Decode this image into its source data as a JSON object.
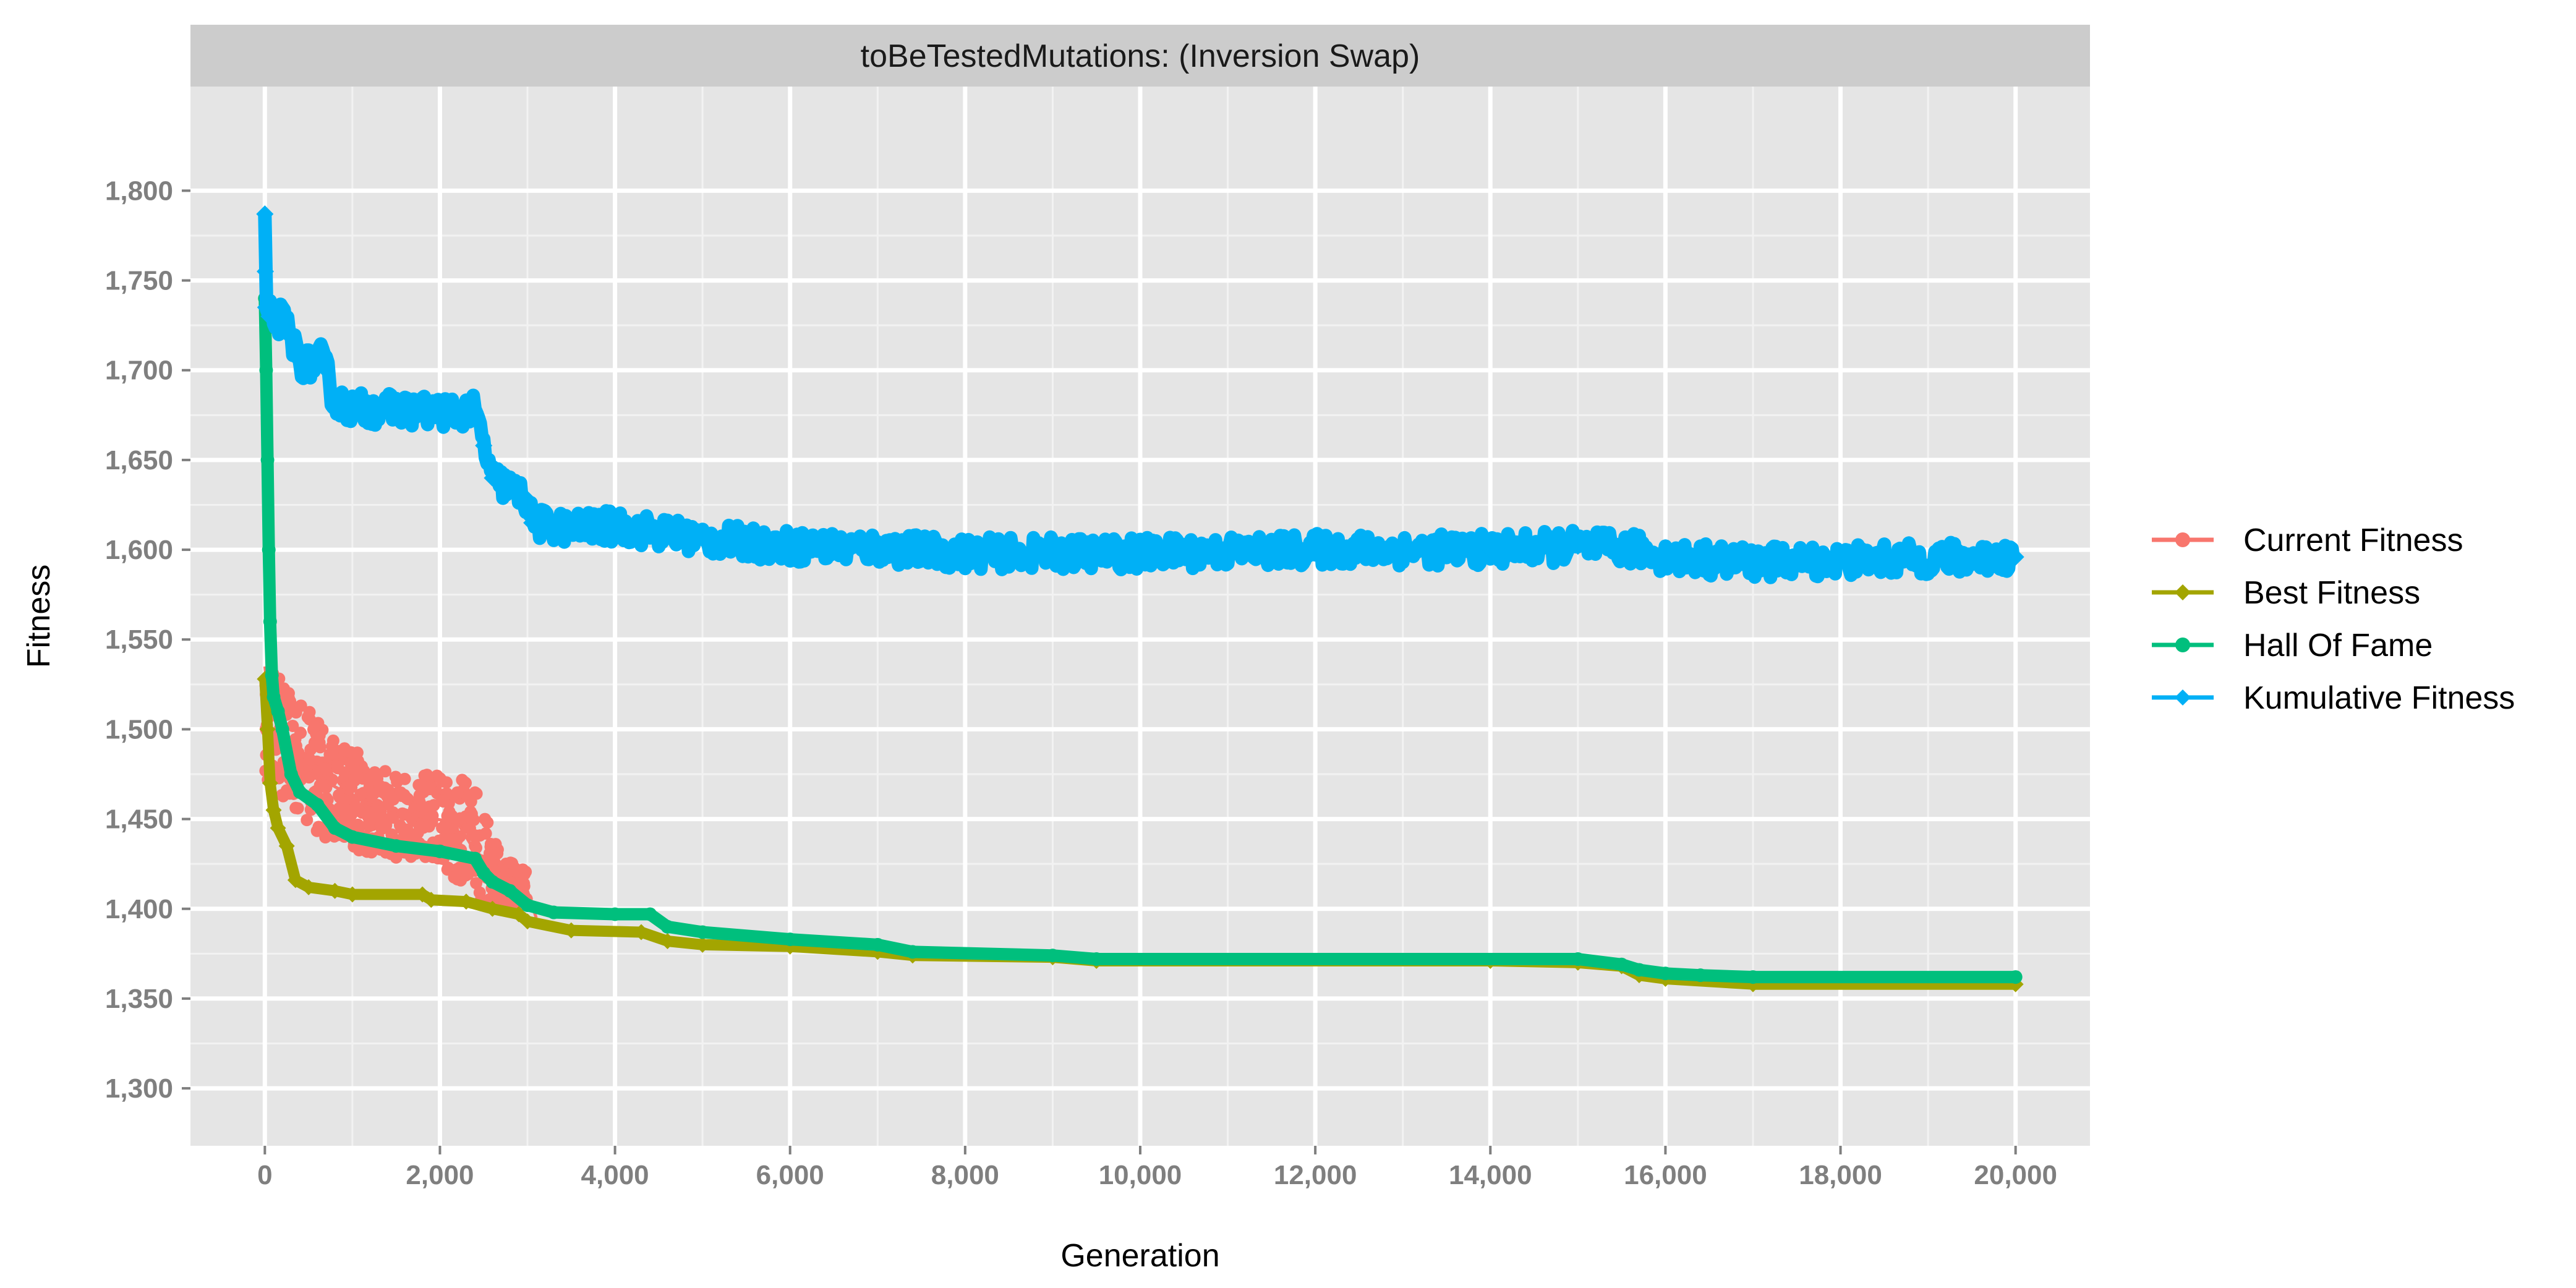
{
  "chart_data": {
    "type": "line",
    "facet_title": "toBeTestedMutations: (Inversion Swap)",
    "xlabel": "Generation",
    "ylabel": "Fitness",
    "xlim": [
      -850,
      20850
    ],
    "ylim": [
      1268,
      1858
    ],
    "x_ticks": [
      0,
      2000,
      4000,
      6000,
      8000,
      10000,
      12000,
      14000,
      16000,
      18000,
      20000
    ],
    "x_tick_labels": [
      "0",
      "2,000",
      "4,000",
      "6,000",
      "8,000",
      "10,000",
      "12,000",
      "14,000",
      "16,000",
      "18,000",
      "20,000"
    ],
    "y_ticks": [
      1300,
      1350,
      1400,
      1450,
      1500,
      1550,
      1600,
      1650,
      1700,
      1750,
      1800
    ],
    "y_tick_labels": [
      "1,300",
      "1,350",
      "1,400",
      "1,450",
      "1,500",
      "1,550",
      "1,600",
      "1,650",
      "1,700",
      "1,750",
      "1,800"
    ],
    "grid": true,
    "legend_position": "right",
    "series": [
      {
        "name": "Current Fitness",
        "color": "#F8766D",
        "marker": "circle",
        "points": [
          [
            0,
            1535
          ],
          [
            50,
            1515
          ],
          [
            150,
            1500
          ],
          [
            300,
            1492
          ],
          [
            500,
            1478
          ],
          [
            800,
            1468
          ],
          [
            1200,
            1458
          ],
          [
            1700,
            1452
          ],
          [
            2200,
            1448
          ],
          [
            2400,
            1432
          ],
          [
            2600,
            1425
          ],
          [
            2800,
            1418
          ],
          [
            3000,
            1410
          ],
          [
            3100,
            1395
          ]
        ],
        "band": [
          [
            0,
            1470,
            1540
          ],
          [
            300,
            1455,
            1522
          ],
          [
            800,
            1435,
            1495
          ],
          [
            1300,
            1430,
            1480
          ],
          [
            2000,
            1425,
            1475
          ],
          [
            2400,
            1405,
            1470
          ],
          [
            2700,
            1402,
            1428
          ],
          [
            3000,
            1398,
            1422
          ]
        ]
      },
      {
        "name": "Best Fitness",
        "color": "#A3A500",
        "marker": "diamond",
        "points": [
          [
            0,
            1528
          ],
          [
            30,
            1500
          ],
          [
            60,
            1470
          ],
          [
            100,
            1455
          ],
          [
            150,
            1445
          ],
          [
            250,
            1435
          ],
          [
            350,
            1416
          ],
          [
            500,
            1412
          ],
          [
            800,
            1410
          ],
          [
            1000,
            1408
          ],
          [
            1800,
            1408
          ],
          [
            1900,
            1405
          ],
          [
            2300,
            1404
          ],
          [
            2600,
            1400
          ],
          [
            2900,
            1397
          ],
          [
            3000,
            1393
          ],
          [
            3500,
            1388
          ],
          [
            4300,
            1387
          ],
          [
            4600,
            1382
          ],
          [
            5000,
            1380
          ],
          [
            6000,
            1379
          ],
          [
            7000,
            1376
          ],
          [
            7400,
            1374
          ],
          [
            9000,
            1373
          ],
          [
            9500,
            1371
          ],
          [
            14000,
            1371
          ],
          [
            15000,
            1370
          ],
          [
            15500,
            1368
          ],
          [
            15700,
            1363
          ],
          [
            16000,
            1361
          ],
          [
            17000,
            1358
          ],
          [
            20000,
            1358
          ]
        ]
      },
      {
        "name": "Hall Of Fame",
        "color": "#00BF7D",
        "marker": "circle",
        "points": [
          [
            0,
            1740
          ],
          [
            15,
            1700
          ],
          [
            30,
            1650
          ],
          [
            45,
            1600
          ],
          [
            60,
            1560
          ],
          [
            80,
            1530
          ],
          [
            100,
            1518
          ],
          [
            150,
            1510
          ],
          [
            200,
            1500
          ],
          [
            300,
            1475
          ],
          [
            400,
            1465
          ],
          [
            600,
            1458
          ],
          [
            800,
            1445
          ],
          [
            1000,
            1440
          ],
          [
            1500,
            1435
          ],
          [
            2000,
            1432
          ],
          [
            2400,
            1428
          ],
          [
            2500,
            1420
          ],
          [
            2600,
            1415
          ],
          [
            2800,
            1410
          ],
          [
            3000,
            1402
          ],
          [
            3300,
            1398
          ],
          [
            4000,
            1397
          ],
          [
            4400,
            1397
          ],
          [
            4600,
            1390
          ],
          [
            5000,
            1387
          ],
          [
            6000,
            1383
          ],
          [
            7000,
            1380
          ],
          [
            7400,
            1376
          ],
          [
            9000,
            1374
          ],
          [
            9500,
            1372
          ],
          [
            15000,
            1372
          ],
          [
            15500,
            1369
          ],
          [
            15700,
            1366
          ],
          [
            16000,
            1364
          ],
          [
            16400,
            1363
          ],
          [
            17000,
            1362
          ],
          [
            20000,
            1362
          ]
        ]
      },
      {
        "name": "Kumulative Fitness",
        "color": "#00B0F6",
        "marker": "diamond",
        "points": [
          [
            0,
            1787
          ],
          [
            5,
            1755
          ],
          [
            10,
            1735
          ],
          [
            50,
            1730
          ],
          [
            200,
            1728
          ],
          [
            300,
            1718
          ],
          [
            400,
            1705
          ],
          [
            500,
            1703
          ],
          [
            650,
            1706
          ],
          [
            700,
            1700
          ],
          [
            800,
            1682
          ],
          [
            1000,
            1679
          ],
          [
            1500,
            1678
          ],
          [
            2000,
            1677
          ],
          [
            2400,
            1677
          ],
          [
            2500,
            1658
          ],
          [
            2600,
            1640
          ],
          [
            2800,
            1634
          ],
          [
            3000,
            1628
          ],
          [
            3050,
            1615
          ],
          [
            3500,
            1612
          ],
          [
            4000,
            1613
          ],
          [
            4500,
            1610
          ],
          [
            5000,
            1606
          ],
          [
            6000,
            1602
          ],
          [
            7000,
            1601
          ],
          [
            8000,
            1598
          ],
          [
            10000,
            1598
          ],
          [
            12000,
            1600
          ],
          [
            14000,
            1600
          ],
          [
            15000,
            1602
          ],
          [
            15700,
            1600
          ],
          [
            16000,
            1596
          ],
          [
            17000,
            1593
          ],
          [
            18000,
            1594
          ],
          [
            20000,
            1596
          ]
        ],
        "noise": 9
      }
    ]
  }
}
